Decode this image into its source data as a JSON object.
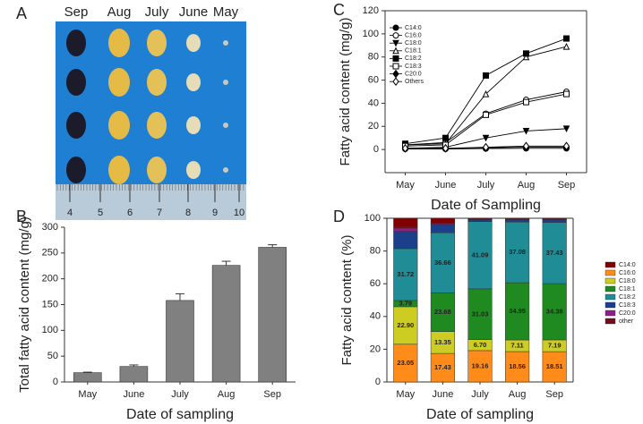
{
  "photo": {
    "panel_label": "A",
    "columns": [
      "Sep",
      "Aug",
      "July",
      "June",
      "May"
    ],
    "ruler": [
      4,
      5,
      6,
      7,
      8,
      9,
      10
    ]
  },
  "chart_data": [
    {
      "type": "bar",
      "panel_label": "B",
      "x_label": "Date of sampling",
      "y_label": "Total fatty acid content (mg/g)",
      "categories": [
        "May",
        "June",
        "July",
        "Aug",
        "Sep"
      ],
      "values": [
        18,
        30,
        158,
        226,
        261
      ],
      "errors": [
        1,
        3,
        13,
        8,
        5
      ],
      "color": "#808080",
      "ylim": [
        0,
        300
      ],
      "yticks": [
        0,
        50,
        100,
        150,
        200,
        250,
        300
      ]
    },
    {
      "type": "line",
      "panel_label": "C",
      "x_label": "Date of Sampling",
      "y_label": "Fatty acid content (mg/g)",
      "categories": [
        "May",
        "June",
        "July",
        "Aug",
        "Sep"
      ],
      "ylim": [
        -20,
        120
      ],
      "yticks": [
        0,
        20,
        40,
        60,
        80,
        100,
        120
      ],
      "legend": "upper left",
      "series": [
        {
          "name": "C14:0",
          "color": "#000000",
          "marker": "circle",
          "filled": true,
          "values": [
            0.5,
            0.5,
            0.8,
            1,
            1
          ]
        },
        {
          "name": "C16:0",
          "color": "#000000",
          "marker": "circle",
          "filled": false,
          "values": [
            4,
            6,
            31,
            43,
            50
          ]
        },
        {
          "name": "C18:0",
          "color": "#000000",
          "marker": "triangle-down",
          "filled": true,
          "values": [
            1,
            2,
            10,
            16,
            18
          ]
        },
        {
          "name": "C18:1",
          "color": "#000000",
          "marker": "triangle-up",
          "filled": false,
          "values": [
            4,
            5,
            48,
            80,
            89
          ]
        },
        {
          "name": "C18:2",
          "color": "#000000",
          "marker": "square",
          "filled": true,
          "values": [
            5,
            10,
            64,
            83,
            96
          ]
        },
        {
          "name": "C18:3",
          "color": "#000000",
          "marker": "square",
          "filled": false,
          "values": [
            3,
            4,
            30,
            41,
            48
          ]
        },
        {
          "name": "C20:0",
          "color": "#000000",
          "marker": "diamond",
          "filled": true,
          "values": [
            1,
            1,
            1.5,
            2,
            2
          ]
        },
        {
          "name": "Others",
          "color": "#000000",
          "marker": "diamond",
          "filled": false,
          "values": [
            1,
            1,
            2,
            3,
            3
          ]
        }
      ]
    },
    {
      "type": "stacked_bar",
      "panel_label": "D",
      "x_label": "Date of sampling",
      "y_label": "Fatty acid content (%)",
      "categories": [
        "May",
        "June",
        "July",
        "Aug",
        "Sep"
      ],
      "ylim": [
        0,
        100
      ],
      "yticks": [
        0,
        20,
        40,
        60,
        80,
        100
      ],
      "legend": "right",
      "legend_order": [
        7,
        0,
        1,
        2,
        3,
        4,
        5,
        6
      ],
      "series": [
        {
          "name": "C16:0",
          "color": "#ff8c1a",
          "values": [
            23.05,
            17.43,
            19.16,
            18.56,
            18.51
          ],
          "value_labels": [
            "23.05",
            "17.43",
            "19.16",
            "18.56",
            "18.51"
          ]
        },
        {
          "name": "C18:0",
          "color": "#cccc22",
          "values": [
            22.9,
            13.35,
            6.7,
            7.11,
            7.19
          ],
          "value_labels": [
            "22.90",
            "13.35",
            "6.70",
            "7.11",
            "7.19"
          ]
        },
        {
          "name": "C18:1",
          "color": "#1f8a1f",
          "values": [
            3.79,
            23.68,
            31.03,
            34.95,
            34.38
          ],
          "value_labels": [
            "3.79",
            "23.68",
            "31.03",
            "34.95",
            "34.38"
          ]
        },
        {
          "name": "C18:2",
          "color": "#1f8c96",
          "values": [
            31.72,
            36.66,
            41.09,
            37.08,
            37.43
          ],
          "value_labels": [
            "31.72",
            "36.66",
            "41.09",
            "37.08",
            "37.43"
          ]
        },
        {
          "name": "C18:3",
          "color": "#1c3f8c",
          "values": [
            10.5,
            5,
            1,
            1.3,
            1.5
          ]
        },
        {
          "name": "C20:0",
          "color": "#8c1f8c",
          "values": [
            2,
            0.5,
            0.3,
            0.3,
            0.3
          ]
        },
        {
          "name": "other",
          "color": "#6b1020",
          "values": [
            1,
            0.5,
            0.2,
            0.2,
            0.2
          ]
        },
        {
          "name": "C14:0",
          "color": "#800000",
          "values": [
            5.04,
            2.88,
            0.52,
            0.5,
            0.49
          ]
        }
      ]
    }
  ]
}
